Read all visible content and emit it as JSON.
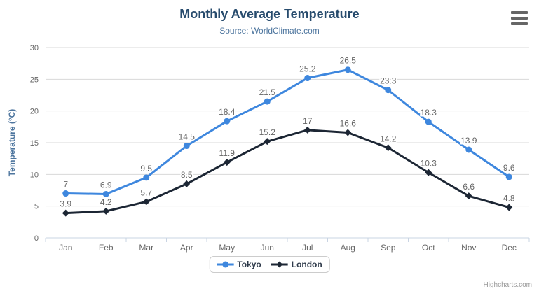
{
  "chart_data": {
    "type": "line",
    "title": "Monthly Average Temperature",
    "subtitle": "Source: WorldClimate.com",
    "categories": [
      "Jan",
      "Feb",
      "Mar",
      "Apr",
      "May",
      "Jun",
      "Jul",
      "Aug",
      "Sep",
      "Oct",
      "Nov",
      "Dec"
    ],
    "series": [
      {
        "name": "Tokyo",
        "color": "#3e87de",
        "marker": "circle",
        "values": [
          7,
          6.9,
          9.5,
          14.5,
          18.4,
          21.5,
          25.2,
          26.5,
          23.3,
          18.3,
          13.9,
          9.6
        ]
      },
      {
        "name": "London",
        "color": "#1c2634",
        "marker": "diamond",
        "values": [
          3.9,
          4.2,
          5.7,
          8.5,
          11.9,
          15.2,
          17,
          16.6,
          14.2,
          10.3,
          6.6,
          4.8
        ]
      }
    ],
    "xlabel": "",
    "ylabel": "Temperature (°C)",
    "ylim": [
      0,
      30
    ],
    "ytick_step": 5,
    "grid": true,
    "data_labels": true,
    "legend_position": "bottom"
  },
  "ui": {
    "credits": "Highcharts.com",
    "menu_icon": "hamburger-menu-icon",
    "colors": {
      "title": "#274b6d",
      "subtitle": "#4d759e",
      "axis_label": "#666666",
      "gridline": "#d8d8d8",
      "axis_line": "#c9d4e3"
    }
  }
}
